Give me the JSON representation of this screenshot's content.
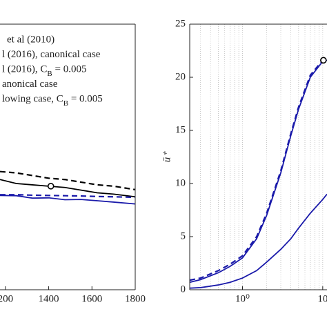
{
  "chart_data": [
    {
      "type": "line",
      "legend_texts": [
        "et al (2010)",
        "l (2016), canonical case",
        "l (2016), C_B = 0.005",
        "anonical case",
        "lowing case, C_B = 0.005"
      ],
      "x": [
        1175,
        1250,
        1325,
        1400,
        1475,
        1550,
        1625,
        1700,
        1800
      ],
      "xlim": [
        1175,
        1800
      ],
      "xticks": [
        {
          "value": 1200,
          "label": "200"
        },
        1400,
        1600,
        1800
      ],
      "ylim": [
        0,
        100
      ],
      "series": [
        {
          "color": "#000000",
          "dash": true,
          "values": [
            44.5,
            44,
            43,
            42,
            41.5,
            40.5,
            39.5,
            39,
            37.7
          ]
        },
        {
          "color": "#000000",
          "dash": false,
          "values": [
            41.5,
            40,
            39.5,
            39,
            38.5,
            37.5,
            36.5,
            36,
            35
          ]
        },
        {
          "color": "#1a1aaa",
          "dash": true,
          "values": [
            35.8,
            35.8,
            35.6,
            35.5,
            35.4,
            35.3,
            35.1,
            35,
            34.8
          ]
        },
        {
          "color": "#1a1aaa",
          "dash": false,
          "values": [
            35.5,
            35.4,
            34.5,
            34.6,
            33.9,
            34,
            33.5,
            33,
            32.3
          ]
        }
      ],
      "markers": [
        {
          "x": 1410,
          "y": 39
        }
      ]
    },
    {
      "type": "line",
      "ylabel": "ū⁺",
      "log_x": true,
      "grid": true,
      "x": [
        0.22,
        0.3,
        0.5,
        0.7,
        1,
        1.5,
        2,
        3,
        4,
        5,
        7,
        10,
        11.3
      ],
      "xlim": [
        0.22,
        11.3
      ],
      "xticks": [
        {
          "value": 1,
          "label": "10⁰"
        },
        10
      ],
      "xminorticks": [
        0.3,
        0.4,
        0.5,
        0.6,
        0.7,
        0.8,
        0.9,
        2,
        3,
        4,
        5,
        6,
        7,
        8,
        9
      ],
      "ylim": [
        0,
        25
      ],
      "yticks": [
        0,
        5,
        10,
        15,
        20,
        25
      ],
      "series": [
        {
          "color": "#1a1aaa",
          "dash": true,
          "values": [
            0.9,
            1.1,
            1.8,
            2.4,
            3.2,
            5,
            7.2,
            11.2,
            14.7,
            17.2,
            20.2,
            21.6,
            21.6
          ]
        },
        {
          "color": "#1a1aaa",
          "dash": false,
          "values": [
            0.7,
            0.95,
            1.6,
            2.2,
            3,
            4.8,
            7,
            11,
            14.5,
            17,
            20,
            21.5,
            21.6
          ]
        },
        {
          "color": "#1a1aaa",
          "dash": false,
          "values": [
            0.15,
            0.2,
            0.45,
            0.7,
            1.1,
            1.8,
            2.6,
            3.8,
            4.8,
            5.8,
            7.2,
            8.5,
            9
          ]
        }
      ],
      "markers": [
        {
          "x": 10.2,
          "y": 21.6
        }
      ]
    }
  ]
}
